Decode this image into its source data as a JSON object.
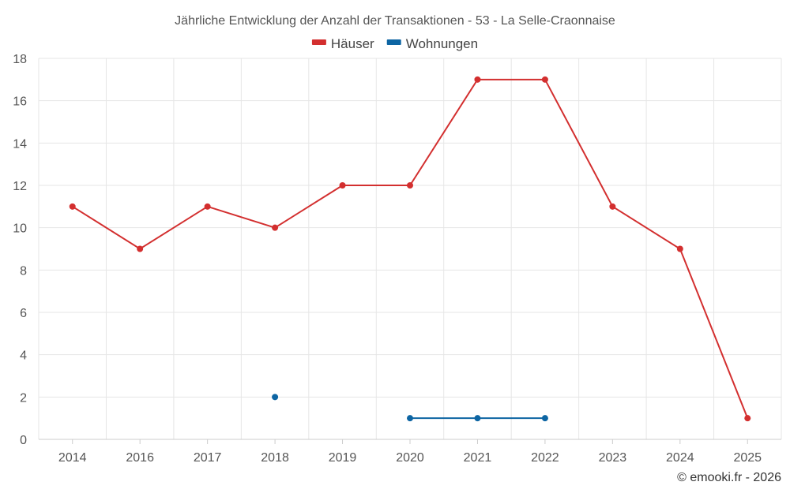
{
  "chart_data": {
    "type": "line",
    "title": "Jährliche Entwicklung der Anzahl der Transaktionen - 53 - La Selle-Craonnaise",
    "categories": [
      "2014",
      "2016",
      "2017",
      "2018",
      "2019",
      "2020",
      "2021",
      "2022",
      "2023",
      "2024",
      "2025"
    ],
    "series": [
      {
        "name": "Häuser",
        "color": "#d32f2f",
        "values": [
          11,
          9,
          11,
          10,
          12,
          12,
          17,
          17,
          11,
          9,
          1
        ]
      },
      {
        "name": "Wohnungen",
        "color": "#0d65a3",
        "values": [
          null,
          null,
          null,
          2,
          null,
          1,
          1,
          1,
          null,
          null,
          null
        ]
      }
    ],
    "ylim": [
      0,
      18
    ],
    "yticks": [
      0,
      2,
      4,
      6,
      8,
      10,
      12,
      14,
      16,
      18
    ],
    "xlabel": "",
    "ylabel": "",
    "grid": true,
    "legend_position": "top-center"
  },
  "credit": "© emooki.fr - 2026"
}
